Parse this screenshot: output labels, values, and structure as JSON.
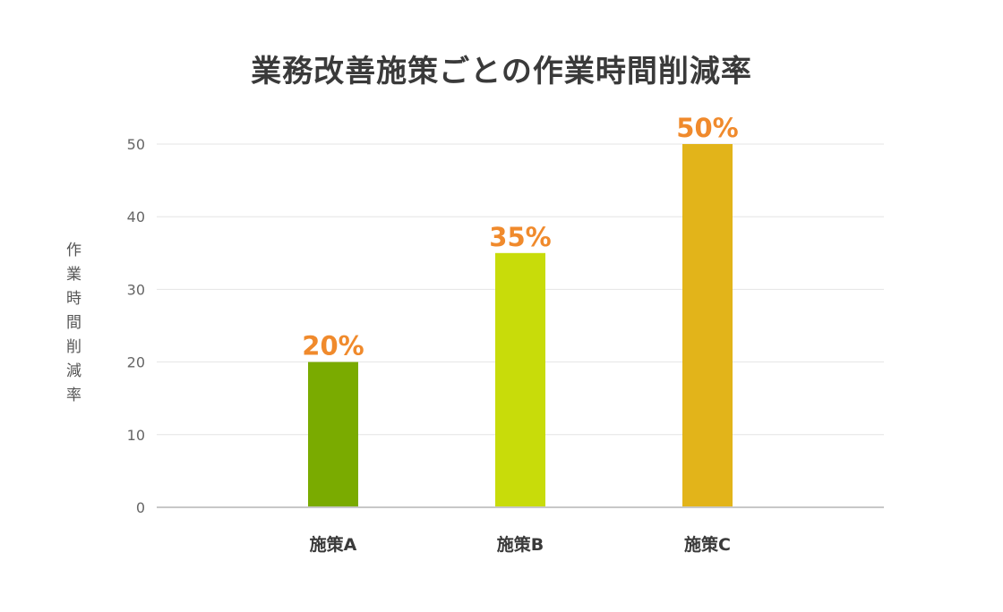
{
  "chart_data": {
    "type": "bar",
    "title": "業務改善施策ごとの作業時間削減率",
    "ylabel": "作業時間削減率",
    "xlabel": "",
    "categories": [
      "施策A",
      "施策B",
      "施策C"
    ],
    "values": [
      20,
      35,
      50
    ],
    "data_labels": [
      "20%",
      "35%",
      "50%"
    ],
    "colors": [
      "#7aab00",
      "#c8dc0a",
      "#e2b41a"
    ],
    "label_color": "#f08a2c",
    "ylim": [
      0,
      50
    ],
    "yticks": [
      "0",
      "10",
      "20",
      "30",
      "40",
      "50"
    ],
    "grid": true
  }
}
